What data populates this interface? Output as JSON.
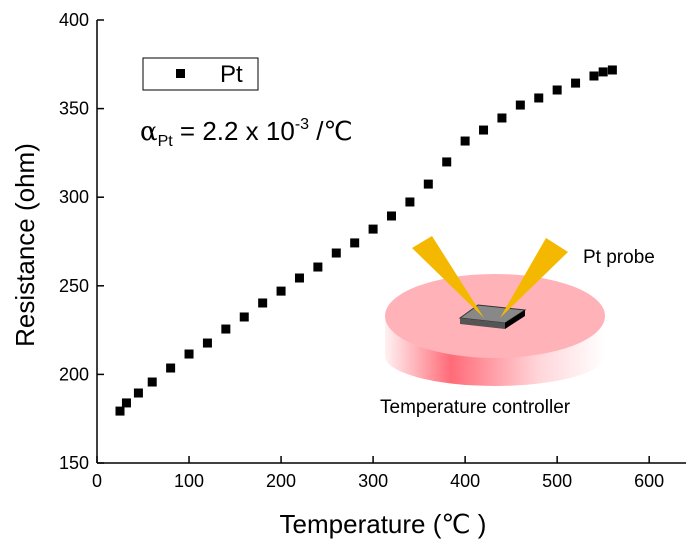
{
  "chart_data": {
    "type": "scatter",
    "xlabel": "Temperature (℃ )",
    "ylabel": "Resistance (ohm)",
    "series": [
      {
        "name": "Pt",
        "color": "#000000",
        "x": [
          25,
          32,
          45,
          60,
          80,
          100,
          120,
          140,
          160,
          180,
          200,
          220,
          240,
          260,
          280,
          300,
          320,
          340,
          360,
          380,
          400,
          420,
          440,
          460,
          480,
          500,
          520,
          540,
          550,
          560
        ],
        "values": [
          179.3,
          183.9,
          189.5,
          195.7,
          203.6,
          211.5,
          217.7,
          225.6,
          232.4,
          240.3,
          247,
          254.4,
          260.6,
          268.5,
          274.2,
          282,
          289.4,
          297.3,
          307.4,
          319.9,
          331.7,
          337.9,
          344.7,
          352,
          356,
          360.5,
          364.4,
          368.4,
          370.7,
          371.8
        ]
      }
    ],
    "xlim": [
      0,
      640
    ],
    "xticks": [
      0,
      100,
      200,
      300,
      400,
      500,
      600
    ],
    "ylim": [
      150,
      400
    ],
    "yticks": [
      150,
      200,
      250,
      300,
      350,
      400
    ],
    "legend": "top-left",
    "annotation": {
      "symbol": "α",
      "subscript": "Pt",
      "text": " = 2.2 x 10",
      "superscript": "-3",
      "unit": " /℃"
    },
    "inset": {
      "probe_label": "Pt probe",
      "controller_label": "Temperature controller"
    }
  }
}
